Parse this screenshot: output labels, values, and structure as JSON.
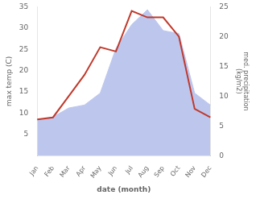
{
  "chart_data": {
    "type": "line",
    "categories": [
      "Jan",
      "Feb",
      "Mar",
      "Apr",
      "May",
      "Jun",
      "Jul",
      "Aug",
      "Sep",
      "Oct",
      "Nov",
      "Dec"
    ],
    "xlabel": "date (month)",
    "ylabel": "max temp (C)",
    "y2label": "med. precipitation\n(kg/m2)",
    "series": [
      {
        "type": "area",
        "color": "#bdc7ee",
        "axis": "y2",
        "values": [
          6.0,
          6.5,
          8.0,
          8.5,
          10.5,
          18.0,
          22.0,
          24.5,
          21.0,
          20.5,
          10.5,
          8.5
        ]
      },
      {
        "type": "line",
        "color": "#c0392b",
        "values": [
          8.5,
          9.0,
          14.0,
          19.0,
          25.5,
          24.5,
          34.0,
          32.5,
          32.5,
          28.0,
          11.0,
          9.0
        ]
      }
    ],
    "ylim": [
      0,
      35
    ],
    "yticks": [
      5,
      10,
      15,
      20,
      25,
      30,
      35
    ],
    "y2lim": [
      0,
      25
    ],
    "y2ticks": [
      0,
      5,
      10,
      15,
      20,
      25
    ],
    "grid": false
  }
}
